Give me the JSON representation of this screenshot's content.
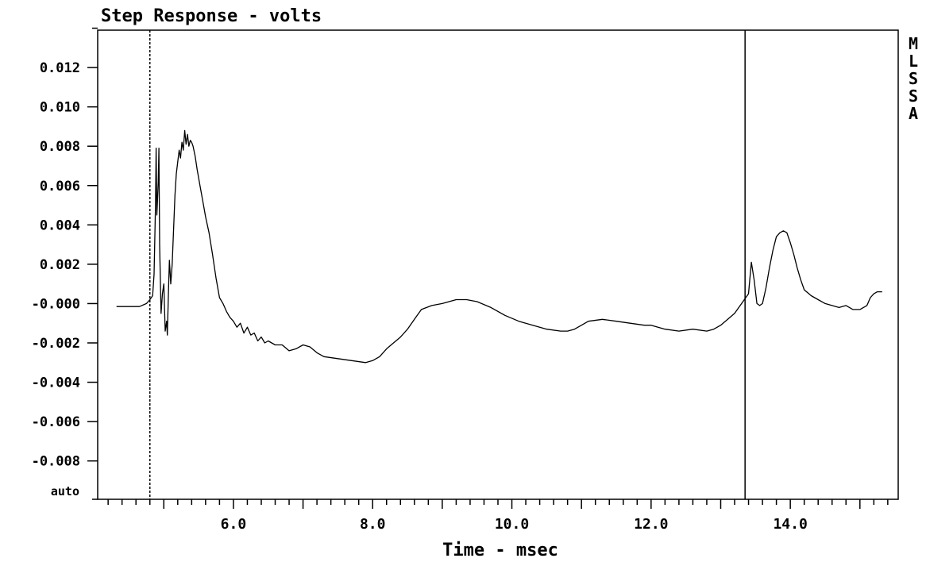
{
  "chart_data": {
    "type": "line",
    "title": "Step Response - volts",
    "xlabel": "Time - msec",
    "ylabel": "",
    "xlim": [
      4.05,
      15.55
    ],
    "ylim": [
      -0.00995,
      0.0139
    ],
    "x_ticks": [
      6.0,
      8.0,
      10.0,
      12.0,
      14.0
    ],
    "x_tick_labels": [
      "6.0",
      "8.0",
      "10.0",
      "12.0",
      "14.0"
    ],
    "y_ticks": [
      0.012,
      0.01,
      0.008,
      0.006,
      0.004,
      0.002,
      0.0,
      -0.002,
      -0.004,
      -0.006,
      -0.008
    ],
    "y_tick_labels": [
      "0.012",
      "0.010",
      "0.008",
      "0.006",
      "0.004",
      "0.002",
      "-0.000",
      "-0.002",
      "-0.004",
      "-0.006",
      "-0.008"
    ],
    "y_bottom_label": "auto",
    "grid": false,
    "legend": [
      "M",
      "L",
      "S",
      "S",
      "A"
    ],
    "cursors": [
      {
        "x": 4.8,
        "style": "dashed"
      },
      {
        "x": 13.35,
        "style": "solid"
      }
    ],
    "series": [
      {
        "points": [
          [
            4.32,
            -0.00015
          ],
          [
            4.5,
            -0.00015
          ],
          [
            4.65,
            -0.00015
          ],
          [
            4.75,
            0.0
          ],
          [
            4.8,
            0.0002
          ],
          [
            4.84,
            0.0004
          ],
          [
            4.86,
            0.0015
          ],
          [
            4.88,
            0.005
          ],
          [
            4.89,
            0.0079
          ],
          [
            4.9,
            0.0045
          ],
          [
            4.92,
            0.0062
          ],
          [
            4.93,
            0.0079
          ],
          [
            4.94,
            0.003
          ],
          [
            4.96,
            -0.0005
          ],
          [
            4.98,
            0.0005
          ],
          [
            5.0,
            0.001
          ],
          [
            5.02,
            -0.0014
          ],
          [
            5.04,
            -0.0009
          ],
          [
            5.05,
            -0.0016
          ],
          [
            5.07,
            0.001
          ],
          [
            5.08,
            0.0022
          ],
          [
            5.1,
            0.001
          ],
          [
            5.12,
            0.002
          ],
          [
            5.14,
            0.0037
          ],
          [
            5.16,
            0.0055
          ],
          [
            5.18,
            0.0066
          ],
          [
            5.2,
            0.0072
          ],
          [
            5.22,
            0.0078
          ],
          [
            5.24,
            0.0074
          ],
          [
            5.26,
            0.0082
          ],
          [
            5.28,
            0.0078
          ],
          [
            5.3,
            0.0088
          ],
          [
            5.32,
            0.0081
          ],
          [
            5.34,
            0.0086
          ],
          [
            5.36,
            0.008
          ],
          [
            5.38,
            0.0083
          ],
          [
            5.4,
            0.0082
          ],
          [
            5.42,
            0.008
          ],
          [
            5.45,
            0.0075
          ],
          [
            5.48,
            0.0068
          ],
          [
            5.52,
            0.006
          ],
          [
            5.56,
            0.0052
          ],
          [
            5.6,
            0.0044
          ],
          [
            5.65,
            0.0036
          ],
          [
            5.7,
            0.0025
          ],
          [
            5.75,
            0.0013
          ],
          [
            5.8,
            0.0003
          ],
          [
            5.85,
            0.0
          ],
          [
            5.9,
            -0.0004
          ],
          [
            5.95,
            -0.0007
          ],
          [
            6.0,
            -0.0009
          ],
          [
            6.05,
            -0.0012
          ],
          [
            6.1,
            -0.001
          ],
          [
            6.15,
            -0.0015
          ],
          [
            6.2,
            -0.0012
          ],
          [
            6.25,
            -0.0016
          ],
          [
            6.3,
            -0.0015
          ],
          [
            6.35,
            -0.0019
          ],
          [
            6.4,
            -0.0017
          ],
          [
            6.45,
            -0.002
          ],
          [
            6.5,
            -0.0019
          ],
          [
            6.6,
            -0.0021
          ],
          [
            6.7,
            -0.0021
          ],
          [
            6.8,
            -0.0024
          ],
          [
            6.9,
            -0.0023
          ],
          [
            7.0,
            -0.0021
          ],
          [
            7.1,
            -0.0022
          ],
          [
            7.2,
            -0.0025
          ],
          [
            7.3,
            -0.0027
          ],
          [
            7.5,
            -0.0028
          ],
          [
            7.7,
            -0.0029
          ],
          [
            7.9,
            -0.003
          ],
          [
            8.0,
            -0.0029
          ],
          [
            8.1,
            -0.0027
          ],
          [
            8.2,
            -0.0023
          ],
          [
            8.3,
            -0.002
          ],
          [
            8.4,
            -0.0017
          ],
          [
            8.5,
            -0.0013
          ],
          [
            8.6,
            -0.0008
          ],
          [
            8.7,
            -0.0003
          ],
          [
            8.85,
            -0.0001
          ],
          [
            9.0,
            0.0
          ],
          [
            9.2,
            0.0002
          ],
          [
            9.35,
            0.0002
          ],
          [
            9.5,
            0.0001
          ],
          [
            9.7,
            -0.0002
          ],
          [
            9.9,
            -0.0006
          ],
          [
            10.1,
            -0.0009
          ],
          [
            10.3,
            -0.0011
          ],
          [
            10.5,
            -0.0013
          ],
          [
            10.7,
            -0.0014
          ],
          [
            10.8,
            -0.0014
          ],
          [
            10.9,
            -0.0013
          ],
          [
            11.0,
            -0.0011
          ],
          [
            11.1,
            -0.0009
          ],
          [
            11.3,
            -0.0008
          ],
          [
            11.5,
            -0.0009
          ],
          [
            11.7,
            -0.001
          ],
          [
            11.9,
            -0.0011
          ],
          [
            12.0,
            -0.0011
          ],
          [
            12.2,
            -0.0013
          ],
          [
            12.4,
            -0.0014
          ],
          [
            12.6,
            -0.0013
          ],
          [
            12.8,
            -0.0014
          ],
          [
            12.9,
            -0.0013
          ],
          [
            13.0,
            -0.0011
          ],
          [
            13.1,
            -0.0008
          ],
          [
            13.2,
            -0.0005
          ],
          [
            13.3,
            0.0
          ],
          [
            13.36,
            0.0003
          ],
          [
            13.4,
            0.0005
          ],
          [
            13.44,
            0.0021
          ],
          [
            13.48,
            0.0012
          ],
          [
            13.52,
            0.0
          ],
          [
            13.56,
            -0.0001
          ],
          [
            13.6,
            0.0
          ],
          [
            13.65,
            0.0008
          ],
          [
            13.7,
            0.0018
          ],
          [
            13.75,
            0.0027
          ],
          [
            13.8,
            0.0034
          ],
          [
            13.85,
            0.0036
          ],
          [
            13.9,
            0.0037
          ],
          [
            13.95,
            0.0036
          ],
          [
            14.0,
            0.0031
          ],
          [
            14.05,
            0.0025
          ],
          [
            14.1,
            0.0018
          ],
          [
            14.15,
            0.0012
          ],
          [
            14.2,
            0.0007
          ],
          [
            14.3,
            0.0004
          ],
          [
            14.4,
            0.0002
          ],
          [
            14.5,
            0.0
          ],
          [
            14.6,
            -0.0001
          ],
          [
            14.7,
            -0.0002
          ],
          [
            14.8,
            -0.0001
          ],
          [
            14.9,
            -0.0003
          ],
          [
            15.0,
            -0.0003
          ],
          [
            15.1,
            -0.0001
          ],
          [
            15.15,
            0.0003
          ],
          [
            15.2,
            0.0005
          ],
          [
            15.25,
            0.0006
          ],
          [
            15.32,
            0.0006
          ]
        ]
      }
    ]
  }
}
